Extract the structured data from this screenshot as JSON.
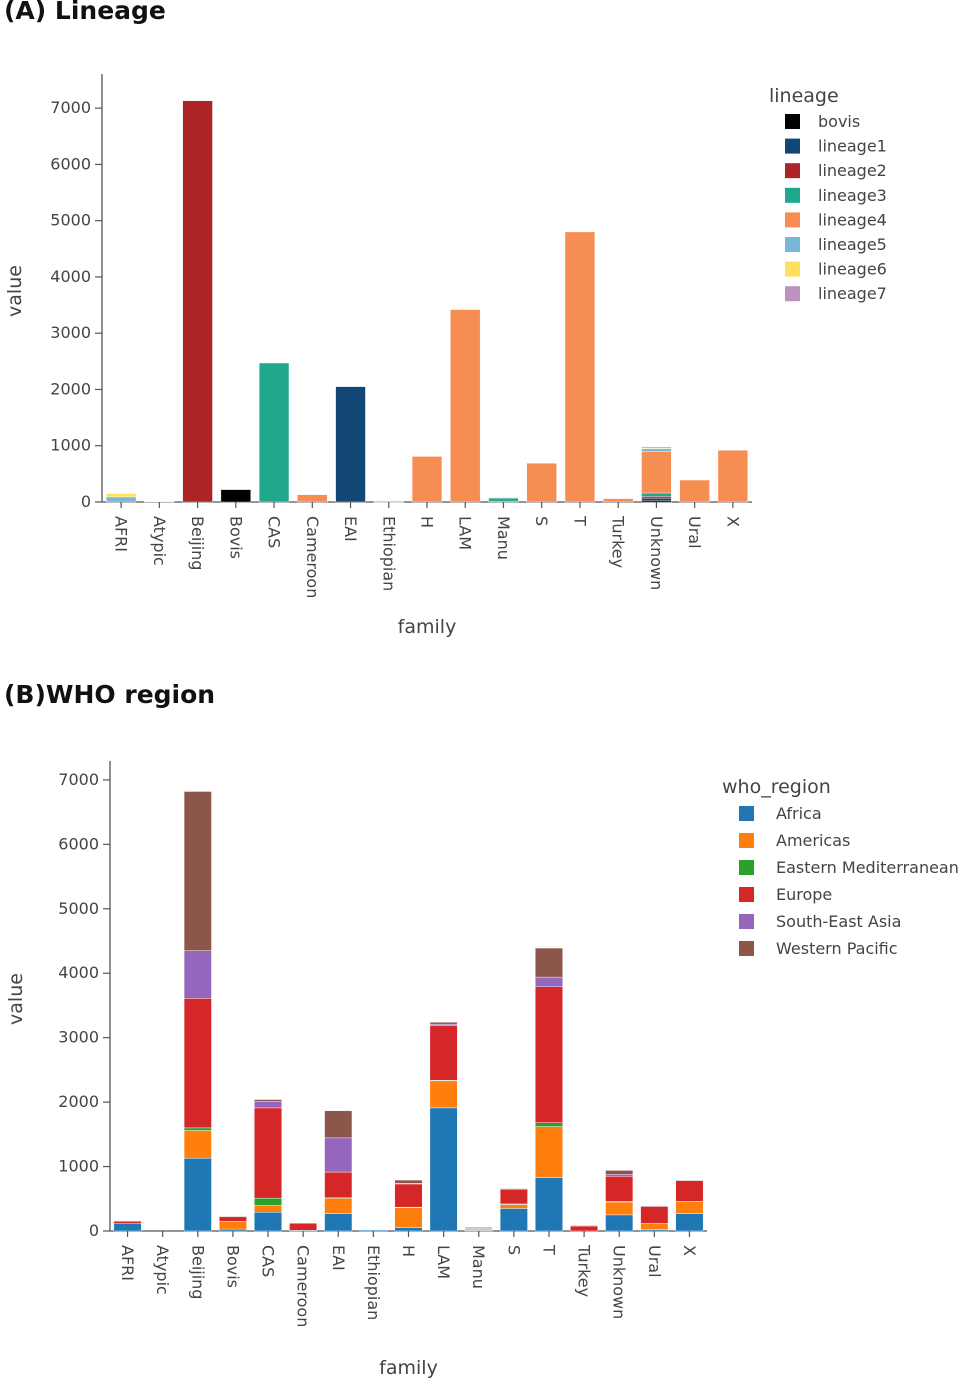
{
  "panels": {
    "a_title": "(A)  Lineage",
    "b_title": "(B)WHO region"
  },
  "chart_data": [
    {
      "type": "bar",
      "stacked": true,
      "xlabel": "family",
      "ylabel": "value",
      "ylim": [
        0,
        7500
      ],
      "yticks": [
        0,
        1000,
        2000,
        3000,
        4000,
        5000,
        6000,
        7000
      ],
      "legend_title": "lineage",
      "legend_position": "right",
      "categories": [
        "AFRI",
        "Atypic",
        "Beijing",
        "Bovis",
        "CAS",
        "Cameroon",
        "EAI",
        "Ethiopian",
        "H",
        "LAM",
        "Manu",
        "S",
        "T",
        "Turkey",
        "Unknown",
        "Ural",
        "X"
      ],
      "series": [
        {
          "name": "bovis",
          "color": "#000000",
          "values": [
            0,
            0,
            0,
            220,
            0,
            0,
            0,
            0,
            0,
            0,
            0,
            0,
            0,
            0,
            30,
            0,
            0
          ]
        },
        {
          "name": "lineage1",
          "color": "#124675",
          "values": [
            0,
            0,
            0,
            0,
            0,
            0,
            2050,
            0,
            0,
            0,
            0,
            0,
            0,
            0,
            40,
            0,
            0
          ]
        },
        {
          "name": "lineage2",
          "color": "#ab2426",
          "values": [
            0,
            0,
            7130,
            0,
            0,
            0,
            0,
            0,
            0,
            0,
            15,
            0,
            0,
            0,
            30,
            0,
            0
          ]
        },
        {
          "name": "lineage3",
          "color": "#20a88c",
          "values": [
            0,
            0,
            0,
            0,
            2470,
            0,
            0,
            0,
            0,
            0,
            55,
            0,
            0,
            0,
            60,
            0,
            0
          ]
        },
        {
          "name": "lineage4",
          "color": "#f68e51",
          "values": [
            0,
            0,
            0,
            0,
            0,
            130,
            0,
            0,
            810,
            3420,
            10,
            690,
            4800,
            60,
            740,
            390,
            920
          ]
        },
        {
          "name": "lineage5",
          "color": "#7ab6d6",
          "values": [
            90,
            10,
            0,
            0,
            0,
            0,
            0,
            5,
            0,
            0,
            0,
            0,
            0,
            0,
            50,
            0,
            0
          ]
        },
        {
          "name": "lineage6",
          "color": "#fde05e",
          "values": [
            60,
            5,
            0,
            0,
            0,
            0,
            0,
            0,
            0,
            0,
            0,
            0,
            0,
            0,
            10,
            0,
            0
          ]
        },
        {
          "name": "lineage7",
          "color": "#be92bd",
          "values": [
            0,
            0,
            0,
            0,
            0,
            0,
            0,
            15,
            0,
            0,
            0,
            0,
            0,
            0,
            20,
            0,
            0
          ]
        }
      ]
    },
    {
      "type": "bar",
      "stacked": true,
      "xlabel": "family",
      "ylabel": "value",
      "ylim": [
        0,
        7200
      ],
      "yticks": [
        0,
        1000,
        2000,
        3000,
        4000,
        5000,
        6000,
        7000
      ],
      "legend_title": "who_region",
      "legend_position": "right",
      "categories": [
        "AFRI",
        "Atypic",
        "Beijing",
        "Bovis",
        "CAS",
        "Cameroon",
        "EAI",
        "Ethiopian",
        "H",
        "LAM",
        "Manu",
        "S",
        "T",
        "Turkey",
        "Unknown",
        "Ural",
        "X"
      ],
      "series": [
        {
          "name": "Africa",
          "color": "#1f77b4",
          "values": [
            120,
            0,
            1130,
            30,
            290,
            10,
            270,
            15,
            50,
            1910,
            10,
            350,
            830,
            0,
            250,
            20,
            270
          ]
        },
        {
          "name": "Americas",
          "color": "#ff7f0e",
          "values": [
            0,
            0,
            430,
            120,
            110,
            0,
            240,
            0,
            310,
            420,
            10,
            60,
            790,
            0,
            200,
            100,
            190
          ]
        },
        {
          "name": "Eastern Mediterranean",
          "color": "#2ca02c",
          "values": [
            0,
            0,
            40,
            0,
            110,
            0,
            5,
            0,
            10,
            10,
            0,
            10,
            60,
            0,
            10,
            0,
            0
          ]
        },
        {
          "name": "Europe",
          "color": "#d62728",
          "values": [
            30,
            0,
            2010,
            70,
            1400,
            110,
            400,
            0,
            360,
            850,
            15,
            230,
            2110,
            80,
            390,
            260,
            320
          ]
        },
        {
          "name": "South-East Asia",
          "color": "#9467bd",
          "values": [
            0,
            0,
            740,
            0,
            100,
            0,
            530,
            0,
            10,
            20,
            5,
            5,
            150,
            0,
            30,
            0,
            0
          ]
        },
        {
          "name": "Western Pacific",
          "color": "#8c564b",
          "values": [
            10,
            0,
            2470,
            10,
            30,
            0,
            420,
            0,
            50,
            30,
            15,
            10,
            450,
            5,
            60,
            10,
            10
          ]
        }
      ]
    }
  ]
}
